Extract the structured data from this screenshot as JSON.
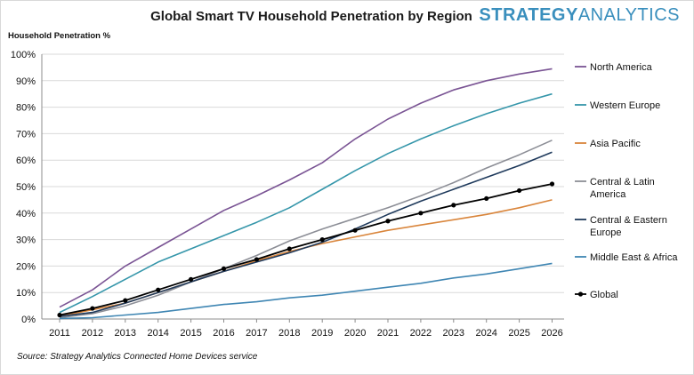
{
  "brand": {
    "name": "STRATEGY",
    "name2": "ANALYTICS"
  },
  "footer": {
    "source": "Source: Strategy Analytics Connected Home Devices service"
  },
  "colors": {
    "north_america": "#7a5494",
    "western_europe": "#3596aa",
    "asia_pacific": "#d9853b",
    "central_latin_america": "#8c8e96",
    "central_eastern_europe": "#1f3a5c",
    "middle_east_africa": "#3f86b3",
    "global": "#000000",
    "grid": "#d9d9d9",
    "axis": "#8c8c8c"
  },
  "chart_data": {
    "type": "line",
    "title": "Global Smart TV Household Penetration by Region",
    "xlabel": "",
    "ylabel": "Household Penetration %",
    "ylim": [
      0,
      100
    ],
    "yticks": [
      "0%",
      "10%",
      "20%",
      "30%",
      "40%",
      "50%",
      "60%",
      "70%",
      "80%",
      "90%",
      "100%"
    ],
    "x": [
      "2011",
      "2012",
      "2013",
      "2014",
      "2015",
      "2016",
      "2017",
      "2018",
      "2019",
      "2020",
      "2021",
      "2022",
      "2023",
      "2024",
      "2025",
      "2026"
    ],
    "legend_position": "right",
    "grid": true,
    "series": [
      {
        "name": "North America",
        "legend": [
          "North America"
        ],
        "color_key": "north_america",
        "marker": false,
        "values": [
          4.5,
          11,
          20,
          27,
          34,
          41,
          46.5,
          52.5,
          59,
          68,
          75.5,
          81.5,
          86.5,
          90,
          92.5,
          94.5
        ]
      },
      {
        "name": "Western Europe",
        "legend": [
          "Western Europe"
        ],
        "color_key": "western_europe",
        "marker": false,
        "values": [
          2.5,
          8.5,
          15,
          21.5,
          26.5,
          31.5,
          36.5,
          42,
          49,
          56,
          62.5,
          68,
          73,
          77.5,
          81.5,
          85
        ]
      },
      {
        "name": "Asia Pacific",
        "legend": [
          "Asia Pacific"
        ],
        "color_key": "asia_pacific",
        "marker": false,
        "values": [
          1,
          3.5,
          6,
          10,
          14,
          18,
          22,
          25.5,
          28.5,
          31,
          33.5,
          35.5,
          37.5,
          39.5,
          42,
          45
        ]
      },
      {
        "name": "Central & Latin America",
        "legend": [
          "Central & Latin",
          "America"
        ],
        "color_key": "central_latin_america",
        "marker": false,
        "values": [
          0.5,
          2,
          5,
          9,
          14,
          19,
          24,
          29.5,
          34,
          38,
          42,
          46.5,
          51.5,
          57,
          62,
          67.5
        ]
      },
      {
        "name": "Central & Eastern Europe",
        "legend": [
          "Central & Eastern",
          "Europe"
        ],
        "color_key": "central_eastern_europe",
        "marker": false,
        "values": [
          1,
          2.5,
          6,
          10,
          14,
          18,
          21.5,
          25,
          29,
          34,
          39.5,
          44.5,
          49,
          53.5,
          58,
          63
        ]
      },
      {
        "name": "Middle East & Africa",
        "legend": [
          "Middle East & Africa"
        ],
        "color_key": "middle_east_africa",
        "marker": false,
        "values": [
          0.2,
          0.5,
          1.5,
          2.5,
          4,
          5.5,
          6.5,
          8,
          9,
          10.5,
          12,
          13.5,
          15.5,
          17,
          19,
          21
        ]
      },
      {
        "name": "Global",
        "legend": [
          "Global"
        ],
        "color_key": "global",
        "marker": true,
        "values": [
          1.5,
          4,
          7,
          11,
          15,
          19,
          22.5,
          26.5,
          30,
          33.5,
          37,
          40,
          43,
          45.5,
          48.5,
          51
        ]
      }
    ]
  }
}
